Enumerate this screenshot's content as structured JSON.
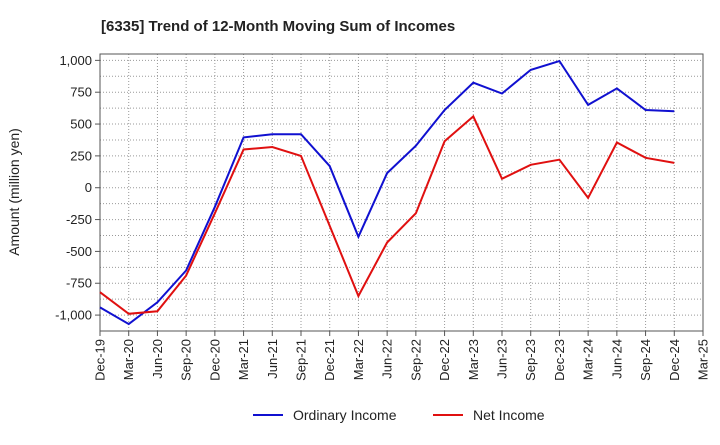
{
  "chart_data": {
    "type": "line",
    "title": "[6335]  Trend of 12-Month Moving Sum of Incomes",
    "xlabel": "",
    "ylabel": "Amount (million yen)",
    "ylim": [
      -1125,
      1050
    ],
    "yticks": [
      -1000,
      -750,
      -500,
      -250,
      0,
      250,
      500,
      750,
      1000
    ],
    "ytick_labels": [
      "-1,000",
      "-750",
      "-500",
      "-250",
      "0",
      "250",
      "500",
      "750",
      "1,000"
    ],
    "categories": [
      "Dec-19",
      "Mar-20",
      "Jun-20",
      "Sep-20",
      "Dec-20",
      "Mar-21",
      "Jun-21",
      "Sep-21",
      "Dec-21",
      "Mar-22",
      "Jun-22",
      "Sep-22",
      "Dec-22",
      "Mar-23",
      "Jun-23",
      "Sep-23",
      "Dec-23",
      "Mar-24",
      "Jun-24",
      "Sep-24",
      "Dec-24",
      "Mar-25"
    ],
    "grid": true,
    "legend_position": "bottom-center",
    "series": [
      {
        "name": "Ordinary Income",
        "color": "#1010d0",
        "values": [
          -940,
          -1070,
          -900,
          -650,
          -150,
          395,
          420,
          420,
          170,
          -385,
          115,
          330,
          610,
          825,
          740,
          925,
          995,
          650,
          780,
          610,
          600,
          null
        ]
      },
      {
        "name": "Net Income",
        "color": "#e01010",
        "values": [
          -820,
          -990,
          -970,
          -690,
          -200,
          300,
          320,
          250,
          -300,
          -850,
          -430,
          -200,
          365,
          560,
          70,
          180,
          220,
          -80,
          355,
          235,
          195,
          null
        ]
      }
    ]
  }
}
